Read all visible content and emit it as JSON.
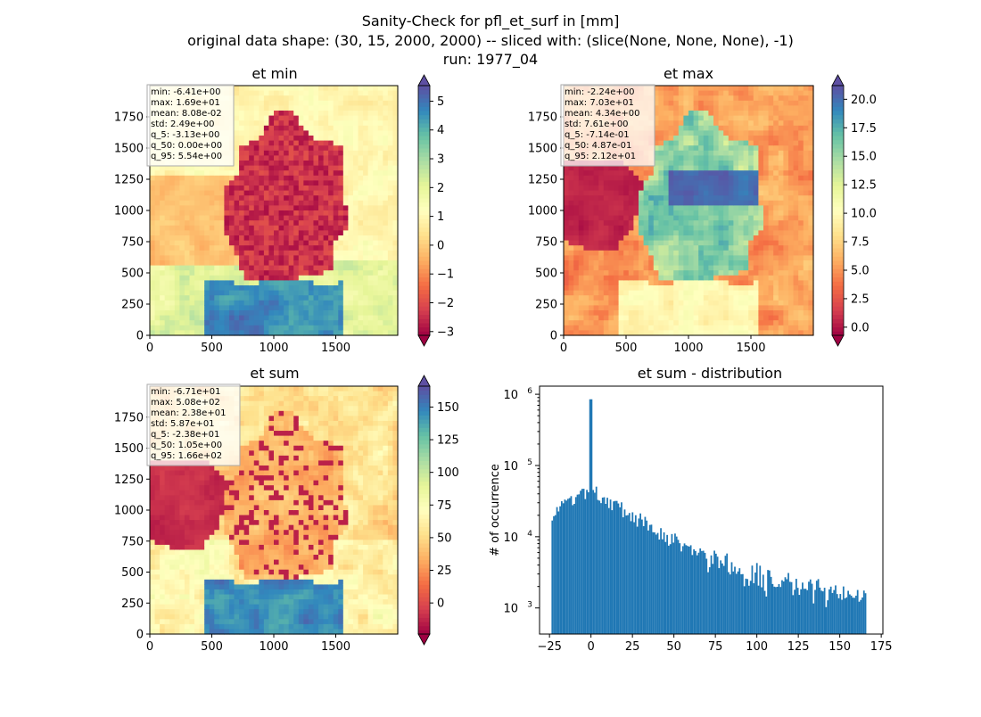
{
  "figure": {
    "title_line1": "Sanity-Check for pfl_et_surf in [mm]",
    "title_line2": "original data shape: (30, 15, 2000, 2000) -- sliced with: (slice(None, None, None), -1)",
    "title_line3": "run: 1977_04"
  },
  "colormap": [
    "#9e0142",
    "#d53e4f",
    "#f46d43",
    "#fdae61",
    "#fee08b",
    "#ffffbf",
    "#e6f598",
    "#abdda4",
    "#66c2a5",
    "#3288bd",
    "#5e4fa2"
  ],
  "chart_data": [
    {
      "type": "heatmap",
      "title": "et min",
      "xticks": [
        0,
        500,
        1000,
        1500
      ],
      "yticks": [
        0,
        250,
        500,
        750,
        1000,
        1250,
        1500,
        1750
      ],
      "xlim": [
        0,
        2000
      ],
      "ylim": [
        0,
        2000
      ],
      "colorbar": {
        "min": -3.13,
        "max": 5.54,
        "ticks": [
          -3,
          -2,
          -1,
          0,
          1,
          2,
          3,
          4,
          5
        ],
        "tick_labels": [
          "−3",
          "−2",
          "−1",
          "0",
          "1",
          "2",
          "3",
          "4",
          "5"
        ],
        "extend": "both"
      },
      "stats": [
        "min: -6.41e+00",
        "max: 1.69e+01",
        "mean: 8.08e-02",
        "std: 2.49e+00",
        "q_5: -3.13e+00",
        "q_50: 0.00e+00",
        "q_95: 5.54e+00"
      ]
    },
    {
      "type": "heatmap",
      "title": "et max",
      "xticks": [
        0,
        500,
        1000,
        1500
      ],
      "yticks": [
        0,
        250,
        500,
        750,
        1000,
        1250,
        1500,
        1750
      ],
      "xlim": [
        0,
        2000
      ],
      "ylim": [
        0,
        2000
      ],
      "colorbar": {
        "min": -0.714,
        "max": 21.2,
        "ticks": [
          0,
          2.5,
          5,
          7.5,
          10,
          12.5,
          15,
          17.5,
          20
        ],
        "tick_labels": [
          "0.0",
          "2.5",
          "5.0",
          "7.5",
          "10.0",
          "12.5",
          "15.0",
          "17.5",
          "20.0"
        ],
        "extend": "both"
      },
      "stats": [
        "min: -2.24e+00",
        "max: 7.03e+01",
        "mean: 4.34e+00",
        "std: 7.61e+00",
        "q_5: -7.14e-01",
        "q_50: 4.87e-01",
        "q_95: 2.12e+01"
      ]
    },
    {
      "type": "heatmap",
      "title": "et sum",
      "xticks": [
        0,
        500,
        1000,
        1500
      ],
      "yticks": [
        0,
        250,
        500,
        750,
        1000,
        1250,
        1500,
        1750
      ],
      "xlim": [
        0,
        2000
      ],
      "ylim": [
        0,
        2000
      ],
      "colorbar": {
        "min": -23.8,
        "max": 166,
        "ticks": [
          0,
          25,
          50,
          75,
          100,
          125,
          150
        ],
        "tick_labels": [
          "0",
          "25",
          "50",
          "75",
          "100",
          "125",
          "150"
        ],
        "extend": "both"
      },
      "stats": [
        "min: -6.71e+01",
        "max: 5.08e+02",
        "mean: 2.38e+01",
        "std: 5.87e+01",
        "q_5: -2.38e+01",
        "q_50: 1.05e+00",
        "q_95: 1.66e+02"
      ]
    },
    {
      "type": "bar",
      "title": "et sum - distribution",
      "ylabel": "# of occurrence",
      "yscale": "log",
      "xlim": [
        -31,
        176
      ],
      "ylim": [
        430,
        1300000
      ],
      "xticks": [
        -25,
        0,
        25,
        50,
        75,
        100,
        125,
        150,
        175
      ],
      "xtick_labels": [
        "−25",
        "0",
        "25",
        "50",
        "75",
        "100",
        "125",
        "150",
        "175"
      ],
      "yticks": [
        1000,
        10000,
        100000,
        1000000
      ],
      "ytick_labels": [
        "10^3",
        "10^4",
        "10^5",
        "10^6"
      ],
      "bin_range": [
        -23.8,
        166
      ],
      "spike": {
        "x": 0,
        "value": 850000
      },
      "color": "#1f77b4"
    }
  ]
}
